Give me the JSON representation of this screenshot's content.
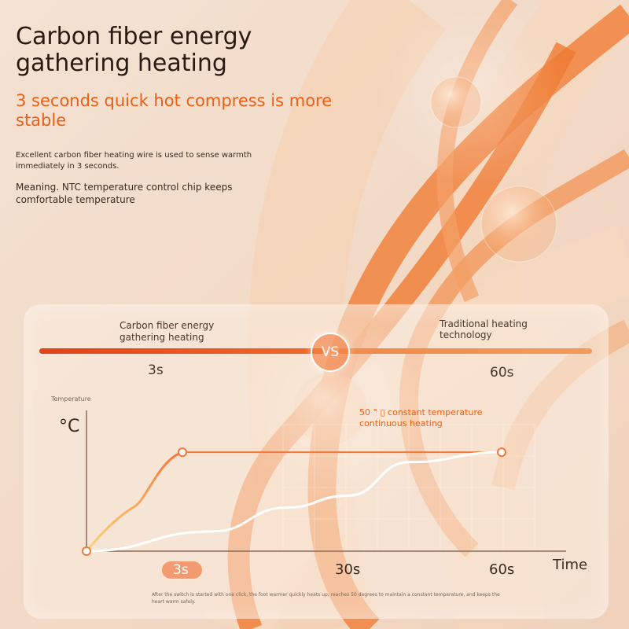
{
  "header": {
    "title": "Carbon fiber energy gathering heating",
    "subtitle": "3 seconds quick hot compress is more stable",
    "description_1": "Excellent carbon fiber heating wire is used to sense warmth immediately in 3 seconds.",
    "description_2": "Meaning. NTC temperature control chip keeps comfortable temperature"
  },
  "comparison": {
    "left_label": "Carbon fiber energy gathering heating",
    "right_label": "Traditional heating technology",
    "vs_label": "VS",
    "left_time": "3s",
    "right_time": "60s"
  },
  "colors": {
    "accent": "#ec5f15",
    "curve_fast": "#f0a030",
    "plateau_line": "#f07a3a",
    "curve_slow": "#ffffff"
  },
  "chart_data": {
    "type": "line",
    "ylabel_small": "Temperature",
    "ylabel": "°C",
    "xlabel": "Time",
    "x_ticks": [
      "3s",
      "30s",
      "60s"
    ],
    "highlighted_tick": "3s",
    "annotation": "50 ° ▯ constant temperature continuous heating",
    "xlim": [
      0,
      60
    ],
    "ylim": [
      0,
      60
    ],
    "series": [
      {
        "curve": "fast",
        "points": [
          [
            0,
            0
          ],
          [
            1,
            15
          ],
          [
            2,
            30
          ],
          [
            3,
            50
          ],
          [
            60,
            50
          ]
        ]
      },
      {
        "curve": "slow",
        "points": [
          [
            0,
            0
          ],
          [
            8,
            10
          ],
          [
            20,
            22
          ],
          [
            30,
            28
          ],
          [
            42,
            45
          ],
          [
            60,
            50
          ]
        ]
      }
    ]
  },
  "footnote": "After the switch is started with one click, the foot warmer quickly heats up, reaches 50 degrees to maintain a constant temperature, and keeps the heart warm safely."
}
